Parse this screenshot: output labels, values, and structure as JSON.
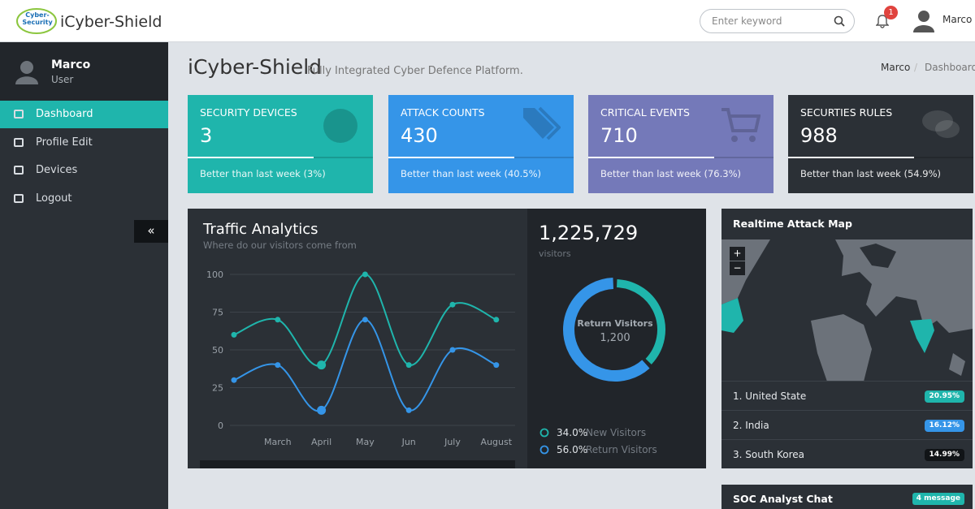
{
  "header": {
    "logo": "Cyber-Security",
    "brand": "iCyber-Shield",
    "search_placeholder": "Enter keyword",
    "notification_count": "1",
    "user": "Marco"
  },
  "sidebar": {
    "user_name": "Marco",
    "user_role": "User",
    "menu": [
      "Dashboard",
      "Profile Edit",
      "Devices",
      "Logout"
    ]
  },
  "page": {
    "title": "iCyber-Shield",
    "subtitle": "Fully Integrated Cyber Defence Platform.",
    "breadcrumb": [
      "Marco",
      "Dashboard"
    ]
  },
  "stat_cards": [
    {
      "label": "SECURITY DEVICES",
      "value": "3",
      "footer": "Better than last week (3%)",
      "color": "#1fb5ac"
    },
    {
      "label": "ATTACK COUNTS",
      "value": "430",
      "footer": "Better than last week (40.5%)",
      "color": "#3595e8"
    },
    {
      "label": "CRITICAL EVENTS",
      "value": "710",
      "footer": "Better than last week (76.3%)",
      "color": "#7479b9"
    },
    {
      "label": "SECURTIES RULES",
      "value": "988",
      "footer": "Better than last week (54.9%)",
      "color": "#2b3036"
    }
  ],
  "traffic": {
    "title": "Traffic Analytics",
    "subtitle": "Where do our visitors come from",
    "total": "1,225,729",
    "total_label": "visitors"
  },
  "chart_data": [
    {
      "type": "line",
      "categories": [
        null,
        "March",
        "April",
        "May",
        "Jun",
        "July",
        "August"
      ],
      "series": [
        {
          "color": "#1fb5ac",
          "values": [
            60,
            70,
            40,
            100,
            40,
            80,
            70
          ]
        },
        {
          "color": "#3595e8",
          "values": [
            30,
            40,
            10,
            70,
            10,
            50,
            40
          ]
        }
      ],
      "ylim": [
        0,
        100
      ],
      "yticks": [
        0,
        25,
        50,
        75,
        100
      ],
      "grid": true
    },
    {
      "type": "donut",
      "center_label": "Return Visitors",
      "center_value": "1,200",
      "series": [
        {
          "name": "New Visitors",
          "color": "#1fb5ac",
          "values": [
            34
          ],
          "value_labels": [
            "34.0%"
          ]
        },
        {
          "name": "Return Visitors",
          "color": "#3595e8",
          "values": [
            56
          ],
          "value_labels": [
            "56.0%"
          ]
        }
      ]
    }
  ],
  "attack_map": {
    "title": "Realtime Attack Map",
    "zoom_in": "+",
    "zoom_out": "−",
    "countries": [
      {
        "name": "1. United State",
        "share": "20.95%",
        "color": "#1fb5ac"
      },
      {
        "name": "2. India",
        "share": "16.12%",
        "color": "#3595e8"
      },
      {
        "name": "3. South Korea",
        "share": "14.99%",
        "color": "#111417"
      }
    ]
  },
  "chat": {
    "title": "SOC Analyst Chat",
    "badge": "4 message"
  }
}
